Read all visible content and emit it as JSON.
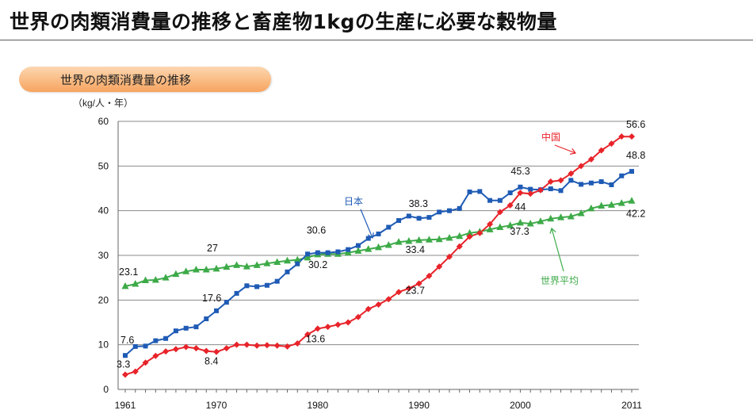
{
  "page": {
    "title": "世界の肉類消費量の推移と畜産物1kgの生産に必要な穀物量",
    "section_label": "世界の肉類消費量の推移"
  },
  "colors": {
    "japan": "#1f5bb5",
    "china": "#e8232a",
    "world": "#3daa48",
    "pill_top": "#fcd7b0",
    "pill_bottom": "#f7a45f"
  },
  "chart_data": {
    "type": "line",
    "title": "世界の肉類消費量の推移",
    "ylabel": "（kg/人・年）",
    "xlabel": "",
    "ylim": [
      0,
      60
    ],
    "y_ticks": [
      0,
      10,
      20,
      30,
      40,
      50,
      60
    ],
    "x_tick_labels": [
      "1961",
      "1970",
      "1980",
      "1990",
      "2000",
      "2011"
    ],
    "x": [
      1961,
      1962,
      1963,
      1964,
      1965,
      1966,
      1967,
      1968,
      1969,
      1970,
      1971,
      1972,
      1973,
      1974,
      1975,
      1976,
      1977,
      1978,
      1979,
      1980,
      1981,
      1982,
      1983,
      1984,
      1985,
      1986,
      1987,
      1988,
      1989,
      1990,
      1991,
      1992,
      1993,
      1994,
      1995,
      1996,
      1997,
      1998,
      1999,
      2000,
      2001,
      2002,
      2003,
      2004,
      2005,
      2006,
      2007,
      2008,
      2009,
      2010,
      2011
    ],
    "grid": true,
    "legend": "inline labels",
    "series": [
      {
        "name": "日本",
        "color_key": "japan",
        "marker": "square",
        "values": [
          7.6,
          9.6,
          9.7,
          10.9,
          11.4,
          13.1,
          13.7,
          14,
          15.8,
          17.6,
          19.5,
          21.5,
          23.2,
          23,
          23.3,
          24.2,
          26.3,
          28.1,
          30.3,
          30.6,
          30.6,
          30.8,
          31.3,
          32.2,
          33.8,
          34.8,
          36.3,
          37.8,
          38.8,
          38.3,
          38.5,
          39.7,
          40,
          40.5,
          44.2,
          44.3,
          42.3,
          42.3,
          44,
          45.3,
          44.8,
          44.7,
          44.9,
          44.5,
          46.8,
          45.9,
          46.2,
          46.5,
          45.8,
          47.8,
          48.8
        ]
      },
      {
        "name": "中国",
        "color_key": "china",
        "marker": "diamond",
        "values": [
          3.3,
          4,
          6,
          7.5,
          8.5,
          9,
          9.5,
          9.2,
          8.6,
          8.4,
          9.2,
          10,
          10,
          9.8,
          9.9,
          9.8,
          9.6,
          10.3,
          12.3,
          13.6,
          14,
          14.5,
          15,
          16.2,
          18,
          19,
          20.2,
          21.8,
          22.6,
          23.7,
          25.4,
          27.5,
          29.7,
          32,
          34.2,
          35,
          37,
          39.7,
          41.2,
          44,
          43.8,
          44.6,
          46.5,
          46.8,
          48.3,
          50,
          51.5,
          53.5,
          55,
          56.6,
          56.6
        ]
      },
      {
        "name": "世界平均",
        "color_key": "world",
        "marker": "triangle",
        "values": [
          23.1,
          23.6,
          24.4,
          24.5,
          25,
          25.8,
          26.4,
          26.8,
          26.8,
          27,
          27.4,
          27.8,
          27.5,
          27.8,
          28.2,
          28.5,
          28.8,
          29,
          29.5,
          30.2,
          30.3,
          30.3,
          30.6,
          31,
          31.4,
          31.8,
          32.3,
          33,
          33.2,
          33.4,
          33.5,
          33.6,
          33.9,
          34.3,
          35,
          35.3,
          35.8,
          36.3,
          36.7,
          37.3,
          37.1,
          37.6,
          38.2,
          38.5,
          38.7,
          39.4,
          40.5,
          41.1,
          41.3,
          41.7,
          42.2
        ]
      }
    ],
    "data_labels": [
      {
        "text": "23.1",
        "series": "世界平均",
        "year": 1961
      },
      {
        "text": "7.6",
        "series": "日本",
        "year": 1961
      },
      {
        "text": "3.3",
        "series": "中国",
        "year": 1961
      },
      {
        "text": "27",
        "series": "世界平均",
        "year": 1970
      },
      {
        "text": "17.6",
        "series": "日本",
        "year": 1970
      },
      {
        "text": "8.4",
        "series": "中国",
        "year": 1970
      },
      {
        "text": "30.6",
        "series": "日本",
        "year": 1980
      },
      {
        "text": "30.2",
        "series": "世界平均",
        "year": 1980
      },
      {
        "text": "13.6",
        "series": "中国",
        "year": 1980
      },
      {
        "text": "38.3",
        "series": "日本",
        "year": 1990
      },
      {
        "text": "33.4",
        "series": "世界平均",
        "year": 1990
      },
      {
        "text": "23.7",
        "series": "中国",
        "year": 1990
      },
      {
        "text": "45.3",
        "series": "日本",
        "year": 2000
      },
      {
        "text": "44",
        "series": "中国",
        "year": 2000
      },
      {
        "text": "37.3",
        "series": "世界平均",
        "year": 2000
      },
      {
        "text": "56.6",
        "series": "中国",
        "year": 2011
      },
      {
        "text": "48.8",
        "series": "日本",
        "year": 2011
      },
      {
        "text": "42.2",
        "series": "世界平均",
        "year": 2011
      }
    ],
    "annotations": [
      {
        "text": "日本",
        "series": "日本"
      },
      {
        "text": "中国",
        "series": "中国"
      },
      {
        "text": "世界平均",
        "series": "世界平均"
      }
    ]
  }
}
